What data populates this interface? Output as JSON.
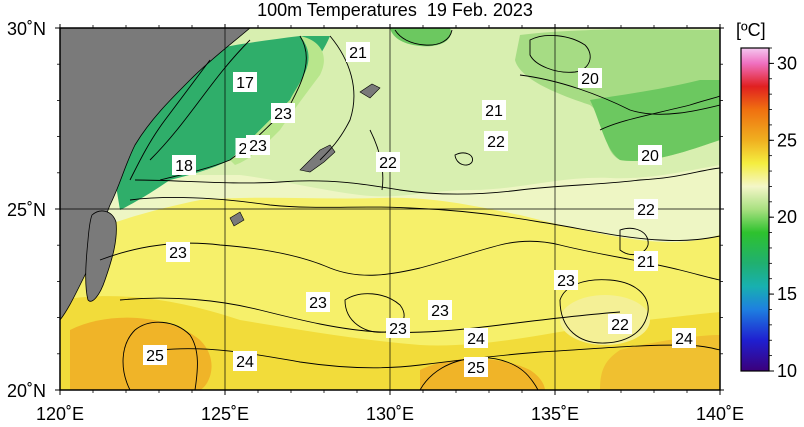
{
  "title": {
    "prefix": "100m Temperatures",
    "date": "19 Feb. 2023"
  },
  "colorbar": {
    "unit": "[ºC]",
    "min": 10,
    "max": 31,
    "ticks": [
      "10",
      "15",
      "20",
      "25",
      "30"
    ],
    "stops": [
      {
        "value": 10,
        "color": "#3b007a"
      },
      {
        "value": 12,
        "color": "#1f1fd0"
      },
      {
        "value": 14,
        "color": "#1e7fe0"
      },
      {
        "value": 15.5,
        "color": "#18b0b0"
      },
      {
        "value": 17,
        "color": "#20b070"
      },
      {
        "value": 19,
        "color": "#2ec22e"
      },
      {
        "value": 20.5,
        "color": "#a8e080"
      },
      {
        "value": 22,
        "color": "#f4f6c8"
      },
      {
        "value": 23.5,
        "color": "#f4ee40"
      },
      {
        "value": 25,
        "color": "#f0b020"
      },
      {
        "value": 27,
        "color": "#f07010"
      },
      {
        "value": 28.5,
        "color": "#e02020"
      },
      {
        "value": 30,
        "color": "#f070c0"
      },
      {
        "value": 31,
        "color": "#f4c8f0"
      }
    ]
  },
  "axes": {
    "lon_ticks": [
      "120˚E",
      "125˚E",
      "130˚E",
      "135˚E",
      "140˚E"
    ],
    "lat_ticks": [
      "20˚N",
      "25˚N",
      "30˚N"
    ]
  },
  "contour_labels": [
    "21",
    "17",
    "23",
    "2",
    "23",
    "18",
    "22",
    "21",
    "22",
    "20",
    "20",
    "22",
    "23",
    "21",
    "23",
    "23",
    "23",
    "23",
    "22",
    "25",
    "24",
    "24",
    "25",
    "24"
  ],
  "colors": {
    "land": "#7a7a7a",
    "gridline": "#000000"
  }
}
